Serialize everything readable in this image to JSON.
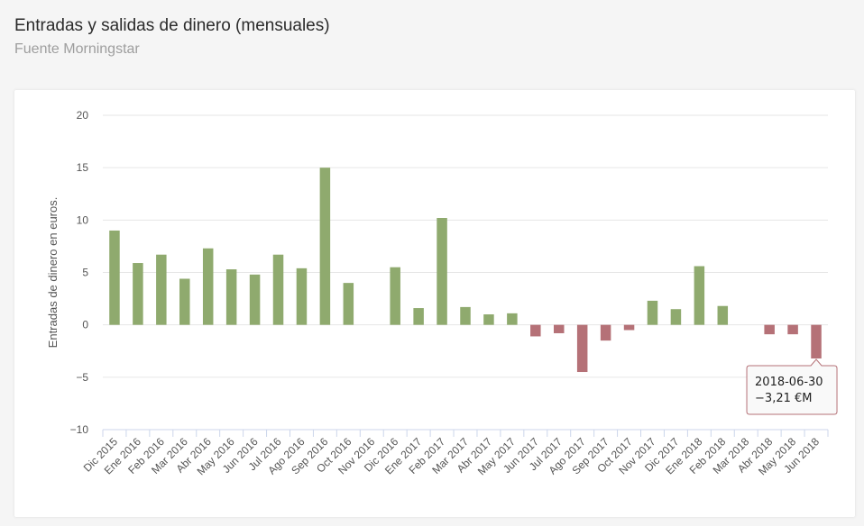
{
  "header": {
    "title": "Entradas y salidas de dinero (mensuales)",
    "subtitle": "Fuente Morningstar"
  },
  "colors": {
    "positive": "#8faa6e",
    "negative": "#b57177",
    "grid": "#e6e6e6",
    "tooltip_border": "#b57177"
  },
  "tooltip": {
    "date": "2018-06-30",
    "value": "−3,21 €M"
  },
  "chart_data": {
    "type": "bar",
    "title": "Entradas y salidas de dinero (mensuales)",
    "subtitle": "Fuente Morningstar",
    "xlabel": "",
    "ylabel": "Entradas de dinero en euros.",
    "ylim": [
      -10,
      20
    ],
    "yticks": [
      20,
      15,
      10,
      5,
      0,
      -5,
      -10
    ],
    "ytick_labels": [
      "20",
      "15",
      "10",
      "5",
      "0",
      "−5",
      "−10"
    ],
    "grid": true,
    "categories": [
      "Dic 2015",
      "Ene 2016",
      "Feb 2016",
      "Mar 2016",
      "Abr 2016",
      "May 2016",
      "Jun 2016",
      "Jul 2016",
      "Ago 2016",
      "Sep 2016",
      "Oct 2016",
      "Nov 2016",
      "Dic 2016",
      "Ene 2017",
      "Feb 2017",
      "Mar 2017",
      "Abr 2017",
      "May 2017",
      "Jun 2017",
      "Jul 2017",
      "Ago 2017",
      "Sep 2017",
      "Oct 2017",
      "Nov 2017",
      "Dic 2017",
      "Ene 2018",
      "Feb 2018",
      "Mar 2018",
      "Abr 2018",
      "May 2018",
      "Jun 2018"
    ],
    "values": [
      9.0,
      5.9,
      6.7,
      4.4,
      7.3,
      5.3,
      4.8,
      6.7,
      5.4,
      15.0,
      4.0,
      0.0,
      5.5,
      1.6,
      10.2,
      1.7,
      1.0,
      1.1,
      -1.1,
      -0.8,
      -4.5,
      -1.5,
      -0.5,
      2.3,
      1.5,
      5.6,
      1.8,
      0.0,
      -0.9,
      -0.9,
      -3.21
    ]
  }
}
